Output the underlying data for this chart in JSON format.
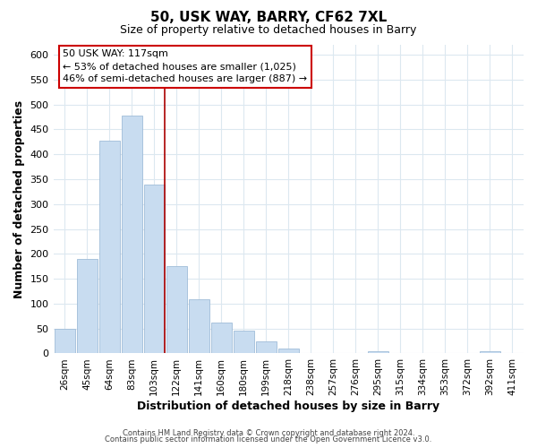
{
  "title": "50, USK WAY, BARRY, CF62 7XL",
  "subtitle": "Size of property relative to detached houses in Barry",
  "xlabel": "Distribution of detached houses by size in Barry",
  "ylabel": "Number of detached properties",
  "bar_labels": [
    "26sqm",
    "45sqm",
    "64sqm",
    "83sqm",
    "103sqm",
    "122sqm",
    "141sqm",
    "160sqm",
    "180sqm",
    "199sqm",
    "218sqm",
    "238sqm",
    "257sqm",
    "276sqm",
    "295sqm",
    "315sqm",
    "334sqm",
    "353sqm",
    "372sqm",
    "392sqm",
    "411sqm"
  ],
  "bar_values": [
    50,
    190,
    428,
    478,
    340,
    175,
    108,
    62,
    45,
    25,
    10,
    0,
    0,
    0,
    5,
    0,
    0,
    0,
    0,
    5,
    0
  ],
  "bar_color": "#c8dcf0",
  "bar_edge_color": "#a0bcd8",
  "vline_color": "#aa0000",
  "ylim": [
    0,
    620
  ],
  "yticks": [
    0,
    50,
    100,
    150,
    200,
    250,
    300,
    350,
    400,
    450,
    500,
    550,
    600
  ],
  "annotation_line1": "50 USK WAY: 117sqm",
  "annotation_line2": "← 53% of detached houses are smaller (1,025)",
  "annotation_line3": "46% of semi-detached houses are larger (887) →",
  "footer_line1": "Contains HM Land Registry data © Crown copyright and database right 2024.",
  "footer_line2": "Contains public sector information licensed under the Open Government Licence v3.0.",
  "background_color": "#ffffff",
  "grid_color": "#dce8f0"
}
